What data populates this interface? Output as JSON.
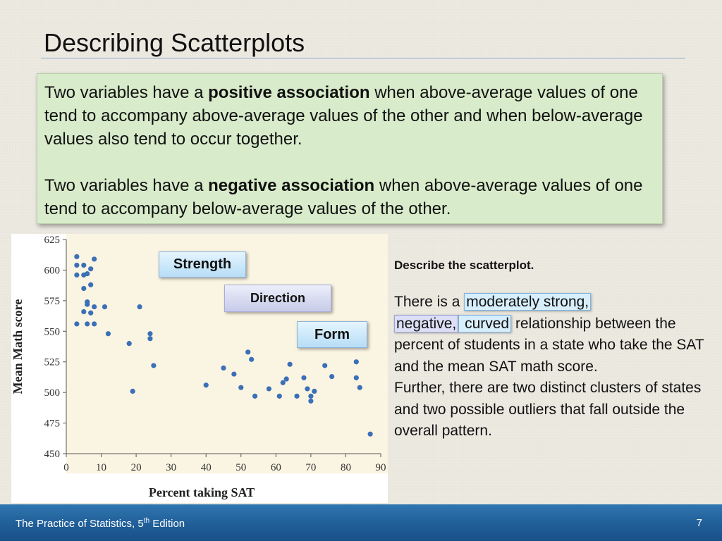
{
  "slide": {
    "title": "Describing Scatterplots",
    "page_number": "7"
  },
  "definitions": {
    "p1_a": "Two variables have a ",
    "p1_bold": "positive association",
    "p1_b": " when above-average values of one tend to accompany above-average values of the other and when below-average values also tend to occur together.",
    "p2_a": "Two variables have a ",
    "p2_bold": "negative association",
    "p2_b": " when above-average values of one tend to accompany below-average values of the other."
  },
  "tags": {
    "strength": "Strength",
    "direction": "Direction",
    "form": "Form"
  },
  "description": {
    "prompt": "Describe the scatterplot.",
    "lead": "There is a ",
    "strength_phrase": "moderately strong,",
    "direction_phrase": "negative,",
    "form_phrase": " curved",
    "rest": " relationship between the percent of students in a state who take the SAT and the mean SAT math score.",
    "further": "Further, there are two distinct clusters of states and two possible outliers that fall outside the overall pattern."
  },
  "footer": {
    "book": "The Practice of Statistics, 5",
    "book_sup": "th",
    "book_end": " Edition"
  },
  "colors": {
    "plot_background": "#faf4e2",
    "point": "#3b6fb6",
    "box_fill": "#d8ebca",
    "footer": "#1f5c96"
  },
  "chart_data": {
    "type": "scatter",
    "title": "",
    "xlabel": "Percent taking SAT",
    "ylabel": "Mean Math score",
    "xlim": [
      0,
      90
    ],
    "ylim": [
      450,
      625
    ],
    "xticks": [
      0,
      10,
      20,
      30,
      40,
      50,
      60,
      70,
      80,
      90
    ],
    "yticks": [
      450,
      475,
      500,
      525,
      550,
      575,
      600,
      625
    ],
    "grid": false,
    "points": [
      [
        3,
        611
      ],
      [
        3,
        604
      ],
      [
        3,
        596
      ],
      [
        3,
        556
      ],
      [
        5,
        604
      ],
      [
        5,
        596
      ],
      [
        5,
        585
      ],
      [
        5,
        566
      ],
      [
        6,
        597
      ],
      [
        6,
        574
      ],
      [
        6,
        572
      ],
      [
        6,
        556
      ],
      [
        7,
        601
      ],
      [
        7,
        588
      ],
      [
        7,
        565
      ],
      [
        8,
        609
      ],
      [
        8,
        570
      ],
      [
        8,
        556
      ],
      [
        11,
        570
      ],
      [
        12,
        548
      ],
      [
        18,
        540
      ],
      [
        19,
        501
      ],
      [
        21,
        570
      ],
      [
        24,
        548
      ],
      [
        24,
        544
      ],
      [
        25,
        522
      ],
      [
        40,
        506
      ],
      [
        45,
        520
      ],
      [
        48,
        515
      ],
      [
        50,
        504
      ],
      [
        52,
        533
      ],
      [
        53,
        527
      ],
      [
        54,
        497
      ],
      [
        58,
        503
      ],
      [
        61,
        497
      ],
      [
        62,
        508
      ],
      [
        63,
        511
      ],
      [
        64,
        523
      ],
      [
        66,
        497
      ],
      [
        68,
        512
      ],
      [
        69,
        503
      ],
      [
        70,
        497
      ],
      [
        70,
        493
      ],
      [
        71,
        501
      ],
      [
        74,
        522
      ],
      [
        76,
        513
      ],
      [
        83,
        525
      ],
      [
        83,
        512
      ],
      [
        84,
        504
      ],
      [
        87,
        466
      ]
    ]
  }
}
